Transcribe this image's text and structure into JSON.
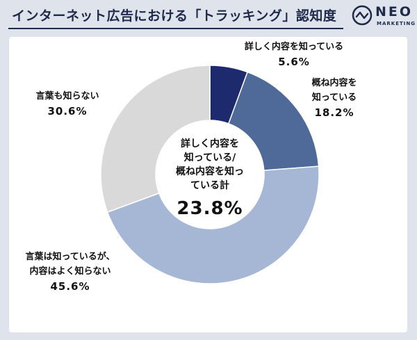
{
  "header": {
    "title": "インターネット広告における「トラッキング」認知度",
    "logo_name": "NEO",
    "logo_sub": "MARKETING"
  },
  "chart_data": {
    "type": "pie",
    "title": "インターネット広告における「トラッキング」認知度",
    "style": "donut",
    "slices": [
      {
        "label_lines": [
          "詳しく内容を知っている"
        ],
        "value": 5.6,
        "value_text": "5.6%",
        "color": "#1e2a6e"
      },
      {
        "label_lines": [
          "概ね内容を",
          "知っている"
        ],
        "value": 18.2,
        "value_text": "18.2%",
        "color": "#4f6a98"
      },
      {
        "label_lines": [
          "言葉は知っているが、",
          "内容はよく知らない"
        ],
        "value": 45.6,
        "value_text": "45.6%",
        "color": "#a5b7d5"
      },
      {
        "label_lines": [
          "言葉も知らない"
        ],
        "value": 30.6,
        "value_text": "30.6%",
        "color": "#d9d9d9"
      }
    ],
    "center": {
      "label_lines": [
        "詳しく内容を",
        "知っている/",
        "概ね内容を知っ",
        "ている計"
      ],
      "value_text": "23.8%"
    }
  },
  "colors": {
    "brand": "#1e2a4a",
    "background": "#dfe3eb"
  }
}
